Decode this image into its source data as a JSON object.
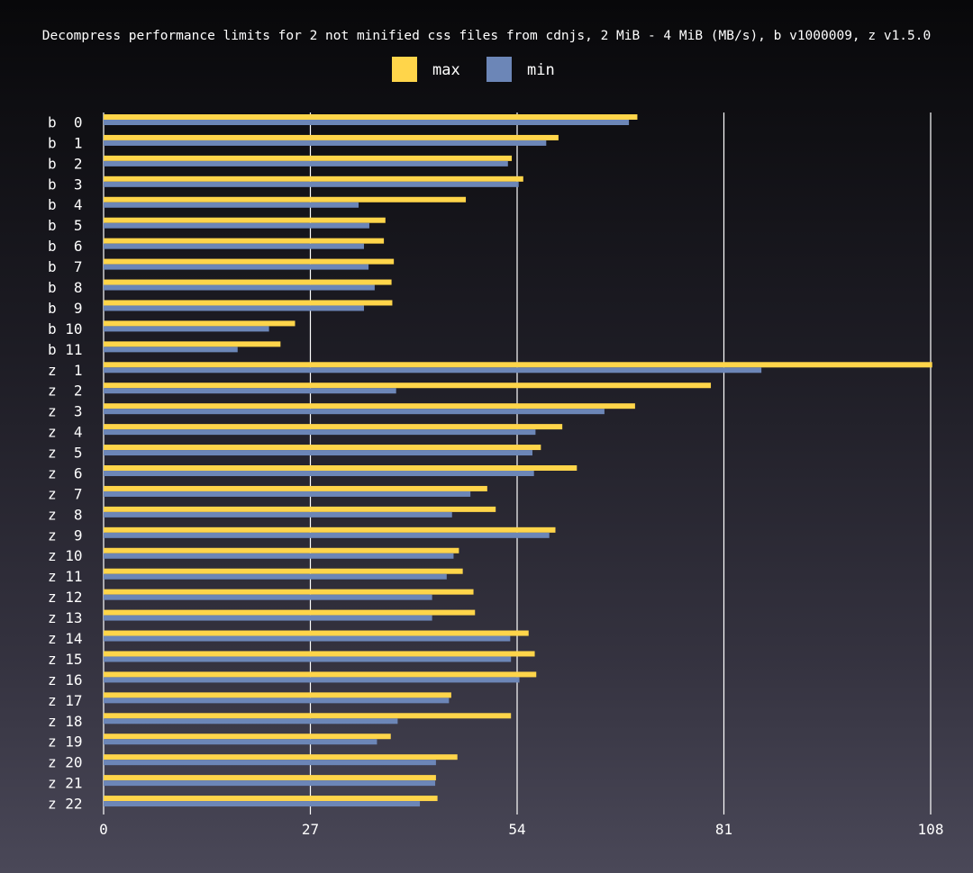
{
  "chart_data": {
    "type": "bar",
    "orientation": "horizontal",
    "title": "Decompress performance limits for 2 not minified css files from cdnjs, 2 MiB - 4 MiB (MB/s), b v1000009, z v1.5.0",
    "categories": [
      "b  0",
      "b  1",
      "b  2",
      "b  3",
      "b  4",
      "b  5",
      "b  6",
      "b  7",
      "b  8",
      "b  9",
      "b 10",
      "b 11",
      "z  1",
      "z  2",
      "z  3",
      "z  4",
      "z  5",
      "z  6",
      "z  7",
      "z  8",
      "z  9",
      "z 10",
      "z 11",
      "z 12",
      "z 13",
      "z 14",
      "z 15",
      "z 16",
      "z 17",
      "z 18",
      "z 19",
      "z 20",
      "z 21",
      "z 22"
    ],
    "series": [
      {
        "name": "max",
        "color": "#ffd54a",
        "values": [
          69.7,
          59.4,
          53.3,
          54.8,
          47.3,
          36.8,
          36.6,
          37.9,
          37.6,
          37.7,
          25.0,
          23.1,
          108.2,
          79.3,
          69.4,
          59.9,
          57.1,
          61.8,
          50.1,
          51.2,
          59.0,
          46.4,
          46.9,
          48.3,
          48.5,
          55.5,
          56.3,
          56.5,
          45.4,
          53.2,
          37.5,
          46.2,
          43.4,
          43.6
        ]
      },
      {
        "name": "min",
        "color": "#6c86b7",
        "values": [
          68.6,
          57.8,
          52.8,
          54.2,
          33.3,
          34.7,
          34.0,
          34.6,
          35.4,
          34.0,
          21.6,
          17.5,
          85.9,
          38.2,
          65.4,
          56.4,
          56.0,
          56.2,
          47.9,
          45.5,
          58.2,
          45.7,
          44.8,
          42.9,
          42.9,
          53.1,
          53.2,
          54.3,
          45.1,
          38.4,
          35.7,
          43.4,
          43.3,
          41.3
        ]
      }
    ],
    "xlim": [
      0,
      108
    ],
    "xticks": [
      "0",
      "27",
      "54",
      "81",
      "108"
    ],
    "grid": true,
    "legend": "top-center"
  }
}
